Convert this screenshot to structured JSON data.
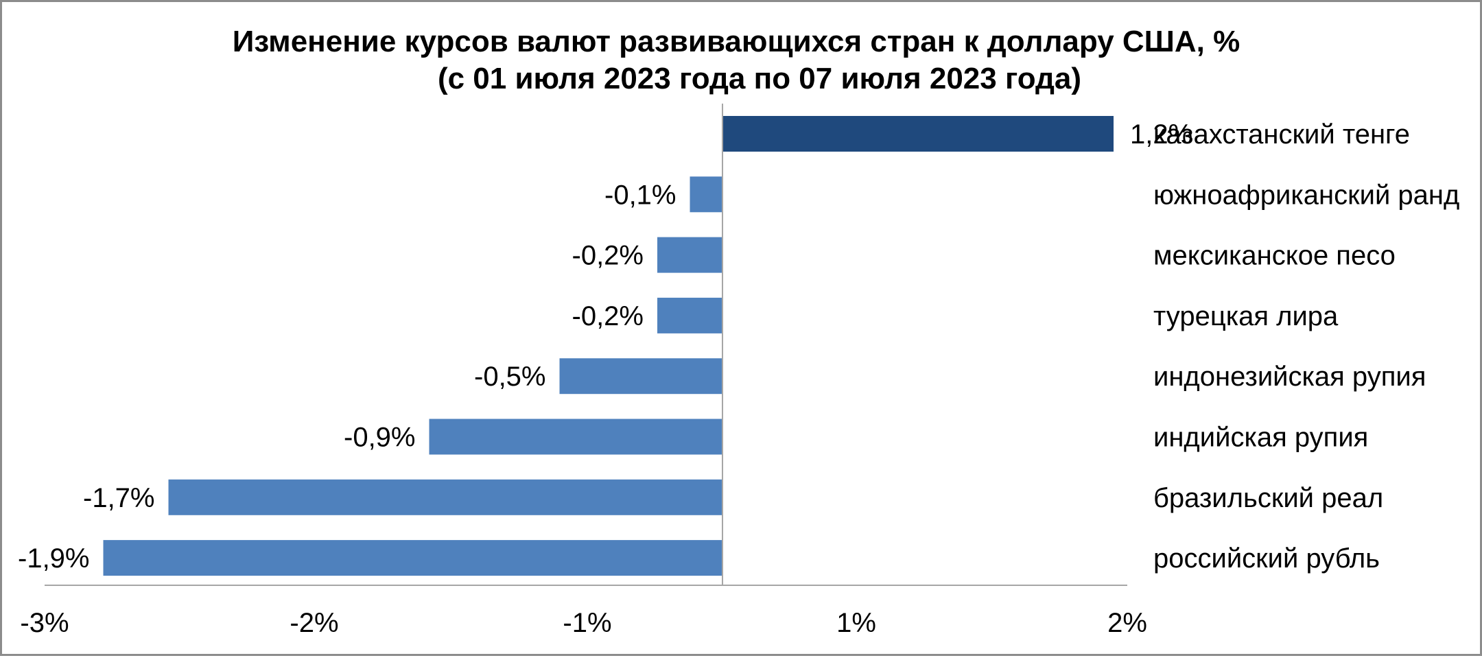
{
  "chart_data": {
    "type": "bar",
    "orientation": "horizontal",
    "title": "Изменение курсов валют развивающихся стран к доллару США, %",
    "subtitle": "(с 01 июля 2023 года по 07 июля 2023 года)",
    "categories": [
      "казахстанский тенге",
      "южноафриканский ранд",
      "мексиканское песо",
      "турецкая лира",
      "индонезийская рупия",
      "индийская рупия",
      "бразильский реал",
      "российский рубль"
    ],
    "values": [
      1.2,
      -0.1,
      -0.2,
      -0.2,
      -0.5,
      -0.9,
      -1.7,
      -1.9
    ],
    "data_labels": [
      "1,2%",
      "-0,1%",
      "-0,2%",
      "-0,2%",
      "-0,5%",
      "-0,9%",
      "-1,7%",
      "-1,9%"
    ],
    "x_ticks": [
      -3,
      -2,
      -1,
      1,
      2
    ],
    "x_tick_labels": [
      "-3%",
      "-2%",
      "-1%",
      "1%",
      "2%"
    ],
    "xlim": [
      -3,
      2
    ],
    "grid": false,
    "legend": "none",
    "colors": {
      "highlight": "#1f497d",
      "bar": "#4f81bd",
      "axis": "#a6a6a6"
    }
  }
}
